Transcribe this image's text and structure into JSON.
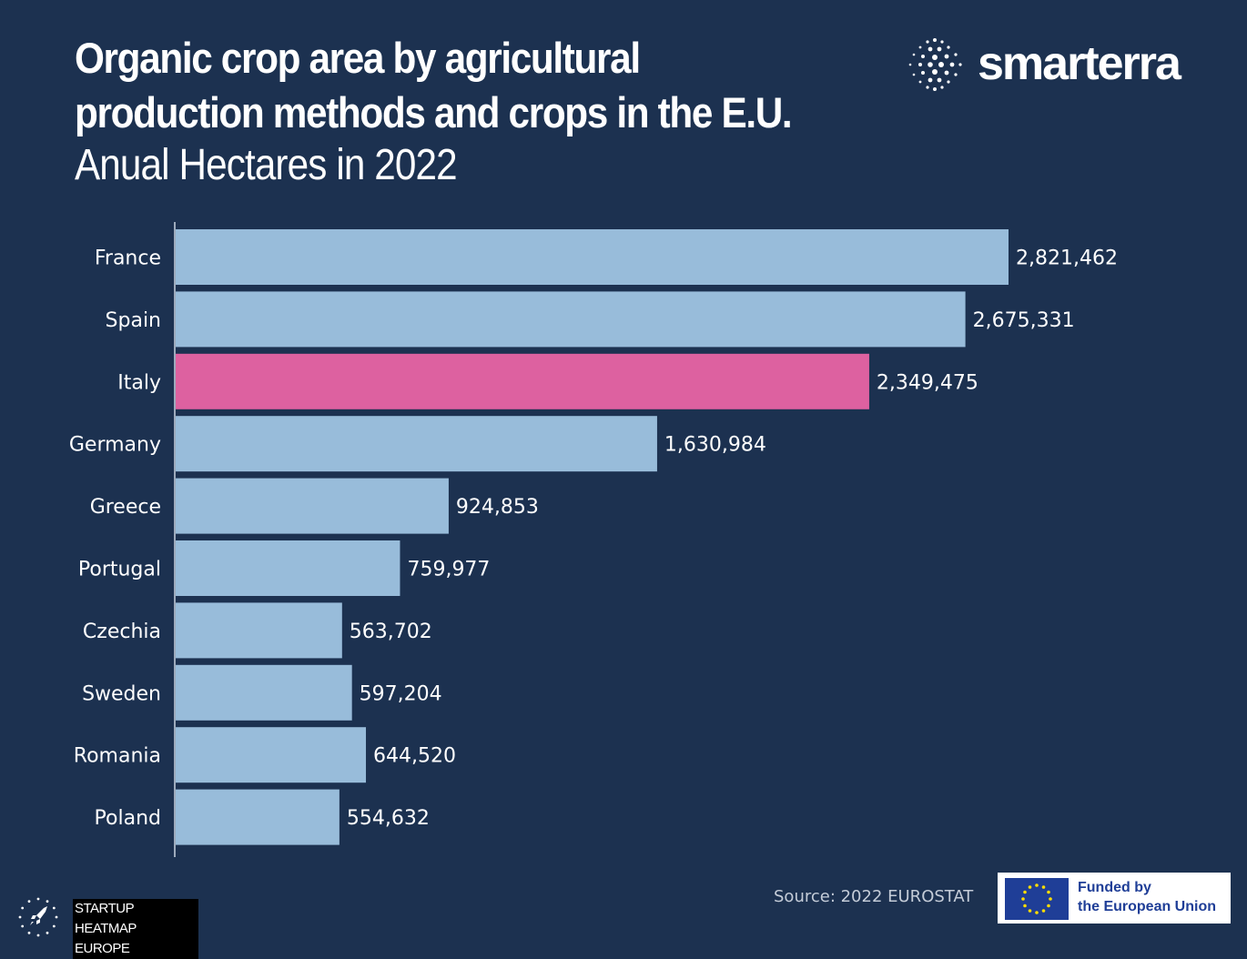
{
  "header": {
    "title": "Organic crop area by agricultural production methods and crops in the E.U.",
    "subtitle": "Anual Hectares in 2022"
  },
  "brand": {
    "name": "smarterra",
    "icon": "dot-sphere-logo-icon"
  },
  "footer": {
    "source": "Source:  2022 EUROSTAT",
    "eu_line1": "Funded by",
    "eu_line2": "the European Union",
    "eu_icon": "eu-flag-icon",
    "startup_line1": "STARTUP HEATMAP",
    "startup_line2": "EUROPE",
    "startup_icon": "rocket-stars-icon"
  },
  "colors": {
    "background": "#1c3150",
    "bar": "#98bcda",
    "highlight": "#dd61a0",
    "axis": "#c8d2e0",
    "text": "#ffffff"
  },
  "chart_data": {
    "type": "bar",
    "orientation": "horizontal",
    "categories": [
      "France",
      "Spain",
      "Italy",
      "Germany",
      "Greece",
      "Portugal",
      "Czechia",
      "Sweden",
      "Romania",
      "Poland"
    ],
    "values": [
      2821462,
      2675331,
      2349475,
      1630984,
      924853,
      759977,
      563702,
      597204,
      644520,
      554632
    ],
    "value_labels": [
      "2,821,462",
      "2,675,331",
      "2,349,475",
      "1,630,984",
      "924,853",
      "759,977",
      "563,702",
      "597,204",
      "644,520",
      "554,632"
    ],
    "highlight": "Italy",
    "xlim": [
      0,
      2821462
    ],
    "grid": false,
    "legend": "none"
  }
}
